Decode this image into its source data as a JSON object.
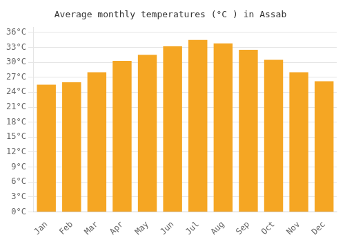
{
  "chart_data": {
    "type": "bar",
    "title": "Average monthly temperatures (°C ) in Assab",
    "categories": [
      "Jan",
      "Feb",
      "Mar",
      "Apr",
      "May",
      "Jun",
      "Jul",
      "Aug",
      "Sep",
      "Oct",
      "Nov",
      "Dec"
    ],
    "values": [
      25.5,
      26.0,
      28.0,
      30.3,
      31.5,
      33.2,
      34.5,
      33.8,
      32.5,
      30.5,
      28.0,
      26.2
    ],
    "color": "#F5A623",
    "ylim": [
      0,
      37
    ],
    "yticks": [
      {
        "value": 0,
        "label": "0°C"
      },
      {
        "value": 3,
        "label": "3°C"
      },
      {
        "value": 6,
        "label": "6°C"
      },
      {
        "value": 9,
        "label": "9°C"
      },
      {
        "value": 12,
        "label": "12°C"
      },
      {
        "value": 15,
        "label": "15°C"
      },
      {
        "value": 18,
        "label": "18°C"
      },
      {
        "value": 21,
        "label": "21°C"
      },
      {
        "value": 24,
        "label": "24°C"
      },
      {
        "value": 27,
        "label": "27°C"
      },
      {
        "value": 30,
        "label": "30°C"
      },
      {
        "value": 33,
        "label": "33°C"
      },
      {
        "value": 36,
        "label": "36°C"
      }
    ],
    "grid": true
  }
}
